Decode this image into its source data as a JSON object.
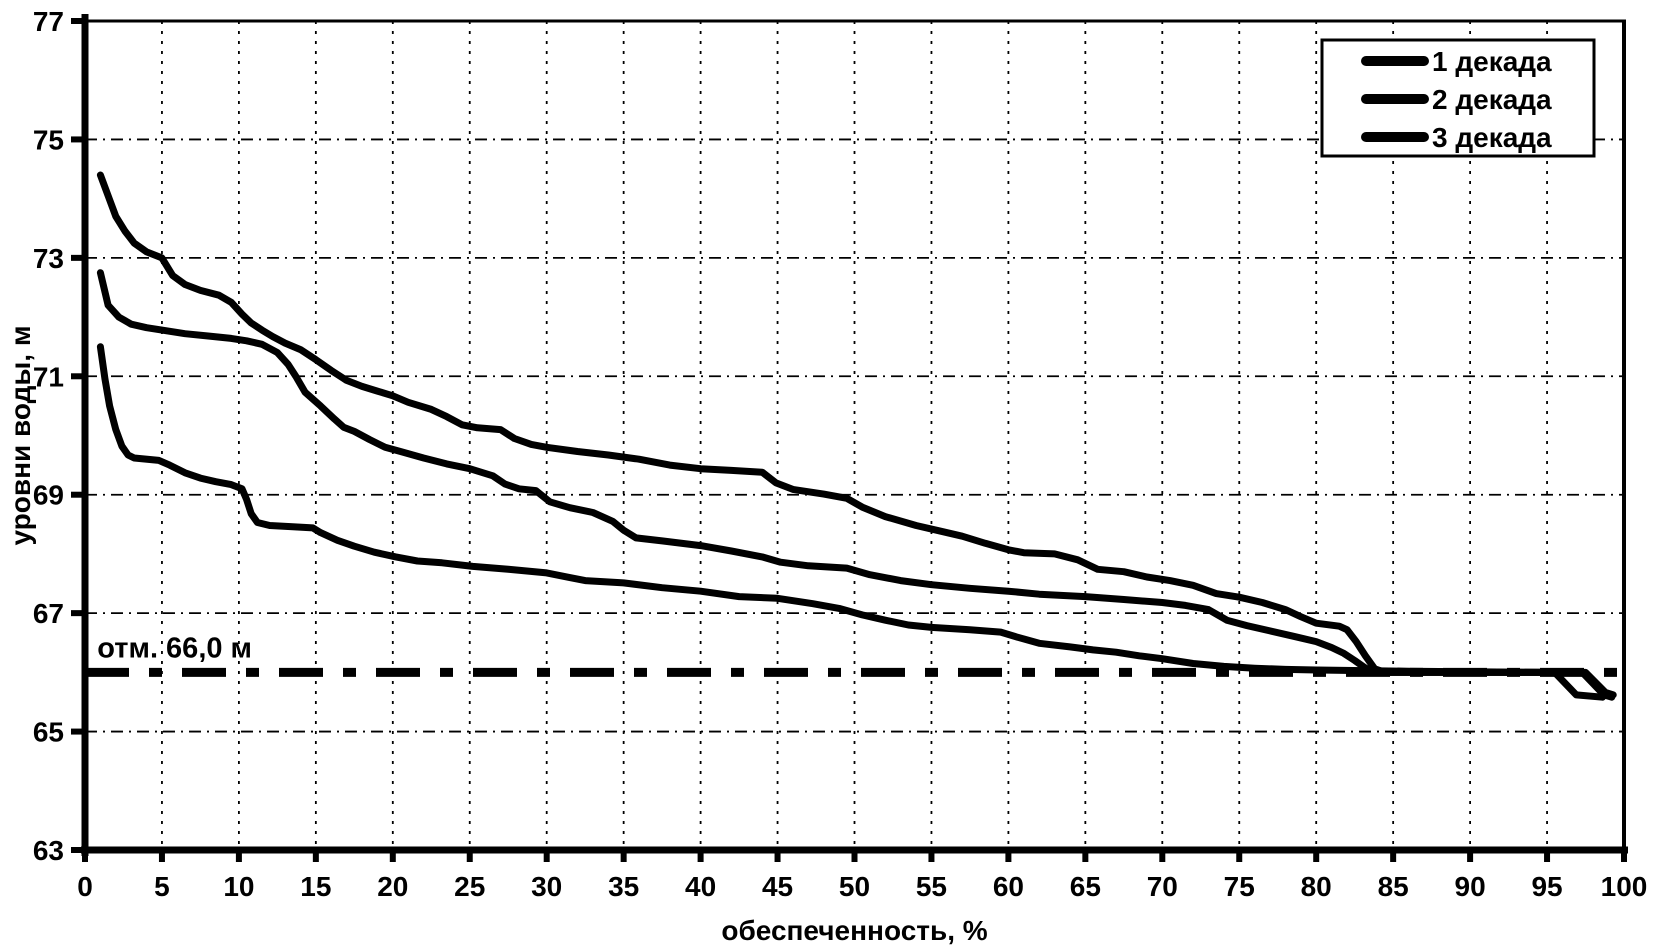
{
  "page": {
    "background": "#ffffff",
    "ink_color": "#000000"
  },
  "chart_data": {
    "type": "line",
    "title": "",
    "xlabel": "обеспеченность, %",
    "ylabel": "уровни воды, м",
    "xlim": [
      0,
      100
    ],
    "ylim": [
      63,
      77
    ],
    "xticks": [
      0,
      5,
      10,
      15,
      20,
      25,
      30,
      35,
      40,
      45,
      50,
      55,
      60,
      65,
      70,
      75,
      80,
      85,
      90,
      95,
      100
    ],
    "yticks": [
      63,
      65,
      67,
      69,
      71,
      73,
      75,
      77
    ],
    "grid": true,
    "grid_style": "dashed",
    "legend_position": "top-right",
    "legend_entries": [
      "1 декада",
      "2 декада",
      "3 декада"
    ],
    "reference_line": {
      "y": 66.0,
      "style": "dash-dot",
      "label": "отм. 66,0 м"
    },
    "annotation": {
      "text": "отм. 66,0 м",
      "x_pct": 0.8,
      "y_level": 66.3
    },
    "line_color": "#000000",
    "series": [
      {
        "name": "1 декада",
        "points": [
          [
            1,
            74.4
          ],
          [
            1.5,
            74.05
          ],
          [
            2,
            73.7
          ],
          [
            2.6,
            73.45
          ],
          [
            3.2,
            73.25
          ],
          [
            4,
            73.1
          ],
          [
            5,
            73.0
          ],
          [
            5.7,
            72.7
          ],
          [
            6.5,
            72.55
          ],
          [
            7.5,
            72.45
          ],
          [
            8.7,
            72.37
          ],
          [
            9.5,
            72.25
          ],
          [
            10.2,
            72.05
          ],
          [
            10.8,
            71.9
          ],
          [
            11.5,
            71.78
          ],
          [
            12.2,
            71.67
          ],
          [
            13,
            71.56
          ],
          [
            14,
            71.45
          ],
          [
            15,
            71.28
          ],
          [
            16,
            71.1
          ],
          [
            17,
            70.93
          ],
          [
            18,
            70.83
          ],
          [
            19,
            70.75
          ],
          [
            20,
            70.67
          ],
          [
            21,
            70.56
          ],
          [
            22.5,
            70.44
          ],
          [
            23.5,
            70.32
          ],
          [
            24.5,
            70.18
          ],
          [
            25.5,
            70.13
          ],
          [
            27,
            70.1
          ],
          [
            27.9,
            69.95
          ],
          [
            29,
            69.85
          ],
          [
            30,
            69.8
          ],
          [
            32,
            69.73
          ],
          [
            34,
            69.67
          ],
          [
            36,
            69.6
          ],
          [
            38,
            69.5
          ],
          [
            40,
            69.44
          ],
          [
            42,
            69.41
          ],
          [
            44,
            69.38
          ],
          [
            44.9,
            69.2
          ],
          [
            46,
            69.09
          ],
          [
            48,
            69.01
          ],
          [
            49.5,
            68.94
          ],
          [
            50.5,
            68.79
          ],
          [
            52,
            68.63
          ],
          [
            54,
            68.48
          ],
          [
            55.5,
            68.39
          ],
          [
            57,
            68.3
          ],
          [
            58.5,
            68.18
          ],
          [
            60,
            68.07
          ],
          [
            61,
            68.02
          ],
          [
            63,
            68.0
          ],
          [
            64.5,
            67.9
          ],
          [
            65.8,
            67.74
          ],
          [
            67.5,
            67.7
          ],
          [
            69,
            67.61
          ],
          [
            70.5,
            67.55
          ],
          [
            72,
            67.47
          ],
          [
            73.5,
            67.33
          ],
          [
            75,
            67.27
          ],
          [
            76.5,
            67.18
          ],
          [
            78,
            67.06
          ],
          [
            79,
            66.94
          ],
          [
            80,
            66.83
          ],
          [
            81.5,
            66.78
          ],
          [
            82,
            66.72
          ],
          [
            82.6,
            66.52
          ],
          [
            83.2,
            66.28
          ],
          [
            83.8,
            66.06
          ],
          [
            84.5,
            66.0
          ],
          [
            97.5,
            66.0
          ],
          [
            98.8,
            65.66
          ],
          [
            99.3,
            65.62
          ]
        ]
      },
      {
        "name": "2 декада",
        "points": [
          [
            1,
            72.75
          ],
          [
            1.5,
            72.2
          ],
          [
            2.2,
            72.0
          ],
          [
            3,
            71.88
          ],
          [
            4,
            71.82
          ],
          [
            5,
            71.78
          ],
          [
            6.5,
            71.72
          ],
          [
            8,
            71.68
          ],
          [
            9.5,
            71.64
          ],
          [
            10.5,
            71.6
          ],
          [
            11.5,
            71.54
          ],
          [
            12.5,
            71.4
          ],
          [
            13.2,
            71.2
          ],
          [
            13.7,
            71.0
          ],
          [
            14.3,
            70.73
          ],
          [
            15.3,
            70.5
          ],
          [
            16.2,
            70.28
          ],
          [
            16.8,
            70.14
          ],
          [
            17.5,
            70.07
          ],
          [
            18.5,
            69.93
          ],
          [
            19.5,
            69.8
          ],
          [
            20.5,
            69.73
          ],
          [
            22,
            69.62
          ],
          [
            23.5,
            69.52
          ],
          [
            25,
            69.44
          ],
          [
            26.5,
            69.32
          ],
          [
            27.3,
            69.18
          ],
          [
            28.2,
            69.1
          ],
          [
            29.3,
            69.07
          ],
          [
            30.2,
            68.88
          ],
          [
            31.5,
            68.78
          ],
          [
            33,
            68.7
          ],
          [
            34.3,
            68.55
          ],
          [
            35,
            68.4
          ],
          [
            35.8,
            68.27
          ],
          [
            37.5,
            68.22
          ],
          [
            40,
            68.14
          ],
          [
            42,
            68.05
          ],
          [
            44,
            67.95
          ],
          [
            45.2,
            67.86
          ],
          [
            47,
            67.8
          ],
          [
            49.5,
            67.76
          ],
          [
            51,
            67.65
          ],
          [
            53,
            67.55
          ],
          [
            55,
            67.48
          ],
          [
            57.5,
            67.42
          ],
          [
            60,
            67.37
          ],
          [
            62,
            67.32
          ],
          [
            65,
            67.28
          ],
          [
            67.5,
            67.23
          ],
          [
            70,
            67.18
          ],
          [
            71.5,
            67.13
          ],
          [
            73,
            67.06
          ],
          [
            74.2,
            66.88
          ],
          [
            75.5,
            66.79
          ],
          [
            77,
            66.7
          ],
          [
            78.5,
            66.61
          ],
          [
            80,
            66.52
          ],
          [
            81,
            66.42
          ],
          [
            81.8,
            66.32
          ],
          [
            82.5,
            66.2
          ],
          [
            83.1,
            66.09
          ],
          [
            83.7,
            66.0
          ],
          [
            97.3,
            66.0
          ],
          [
            98.7,
            65.62
          ],
          [
            99.2,
            65.58
          ]
        ]
      },
      {
        "name": "3 декада",
        "points": [
          [
            1,
            71.5
          ],
          [
            1.3,
            70.95
          ],
          [
            1.6,
            70.5
          ],
          [
            2,
            70.1
          ],
          [
            2.4,
            69.82
          ],
          [
            2.8,
            69.67
          ],
          [
            3.2,
            69.62
          ],
          [
            4.8,
            69.58
          ],
          [
            5.5,
            69.5
          ],
          [
            6.5,
            69.37
          ],
          [
            7.5,
            69.28
          ],
          [
            8.5,
            69.22
          ],
          [
            9.5,
            69.17
          ],
          [
            10.2,
            69.1
          ],
          [
            10.5,
            68.92
          ],
          [
            10.8,
            68.68
          ],
          [
            11.2,
            68.53
          ],
          [
            12,
            68.48
          ],
          [
            13.5,
            68.46
          ],
          [
            14.8,
            68.44
          ],
          [
            15.3,
            68.36
          ],
          [
            16.4,
            68.23
          ],
          [
            17.5,
            68.13
          ],
          [
            18.8,
            68.03
          ],
          [
            20.2,
            67.95
          ],
          [
            21.6,
            67.88
          ],
          [
            23.2,
            67.85
          ],
          [
            25.2,
            67.79
          ],
          [
            27.5,
            67.74
          ],
          [
            30,
            67.68
          ],
          [
            31.5,
            67.6
          ],
          [
            32.5,
            67.55
          ],
          [
            35,
            67.51
          ],
          [
            37.5,
            67.43
          ],
          [
            40,
            67.37
          ],
          [
            42.5,
            67.28
          ],
          [
            45,
            67.25
          ],
          [
            47.3,
            67.16
          ],
          [
            49,
            67.08
          ],
          [
            50.5,
            66.97
          ],
          [
            52,
            66.88
          ],
          [
            53.5,
            66.8
          ],
          [
            55,
            66.76
          ],
          [
            57.5,
            66.72
          ],
          [
            59.5,
            66.68
          ],
          [
            60.5,
            66.6
          ],
          [
            62,
            66.49
          ],
          [
            64,
            66.43
          ],
          [
            65.5,
            66.38
          ],
          [
            67,
            66.34
          ],
          [
            68.5,
            66.28
          ],
          [
            70,
            66.23
          ],
          [
            72,
            66.15
          ],
          [
            74,
            66.1
          ],
          [
            76,
            66.07
          ],
          [
            78,
            66.05
          ],
          [
            80,
            66.04
          ],
          [
            83,
            66.03
          ],
          [
            86,
            66.02
          ],
          [
            90,
            66.01
          ],
          [
            95.5,
            66.0
          ],
          [
            96.9,
            65.62
          ],
          [
            98.6,
            65.58
          ]
        ]
      }
    ]
  }
}
